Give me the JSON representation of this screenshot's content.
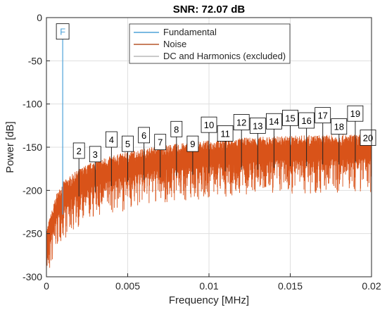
{
  "chart_data": {
    "type": "line",
    "title": "SNR:  72.07 dB",
    "xlabel": "Frequency [MHz]",
    "ylabel": "Power [dB]",
    "xlim": [
      0,
      0.02
    ],
    "ylim": [
      -300,
      0
    ],
    "xticks": [
      0,
      0.005,
      0.01,
      0.015,
      0.02
    ],
    "xtick_labels": [
      "0",
      "0.005",
      "0.01",
      "0.015",
      "0.02"
    ],
    "yticks": [
      0,
      -50,
      -100,
      -150,
      -200,
      -250,
      -300
    ],
    "ytick_labels": [
      "0",
      "-50",
      "-100",
      "-150",
      "-200",
      "-250",
      "-300"
    ],
    "grid": true,
    "legend": {
      "placement": "top",
      "entries": [
        {
          "name": "Fundamental",
          "color": "#4fa3d9"
        },
        {
          "name": "Noise",
          "color": "#b5562a"
        },
        {
          "name": "DC and Harmonics (excluded)",
          "color": "#b8b8b8"
        }
      ]
    },
    "fundamental": {
      "label": "F",
      "x": 0.001,
      "y": -25,
      "color": "#4fa3d9"
    },
    "noise_color": "#d95319",
    "noise_trend": {
      "x": [
        0.0,
        0.0003,
        0.0006,
        0.001,
        0.002,
        0.003,
        0.005,
        0.007,
        0.01,
        0.013,
        0.016,
        0.02
      ],
      "y": [
        -265,
        -245,
        -225,
        -210,
        -195,
        -185,
        -175,
        -168,
        -162,
        -158,
        -156,
        -155
      ]
    },
    "harmonics": {
      "labels": [
        "2",
        "3",
        "4",
        "5",
        "6",
        "7",
        "8",
        "9",
        "10",
        "11",
        "12",
        "13",
        "14",
        "15",
        "16",
        "17",
        "18",
        "19",
        "20"
      ],
      "x": [
        0.002,
        0.003,
        0.004,
        0.005,
        0.006,
        0.007,
        0.008,
        0.009,
        0.01,
        0.011,
        0.012,
        0.013,
        0.014,
        0.015,
        0.016,
        0.017,
        0.018,
        0.019,
        0.02
      ],
      "top": [
        -163,
        -167,
        -150,
        -155,
        -145,
        -153,
        -138,
        -155,
        -133,
        -143,
        -130,
        -134,
        -129,
        -125,
        -128,
        -122,
        -135,
        -120,
        -148
      ],
      "bottom": [
        -207,
        -202,
        -195,
        -190,
        -188,
        -185,
        -183,
        -182,
        -180,
        -178,
        -176,
        -176,
        -174,
        -172,
        -172,
        -170,
        -170,
        -168,
        -168
      ]
    }
  }
}
